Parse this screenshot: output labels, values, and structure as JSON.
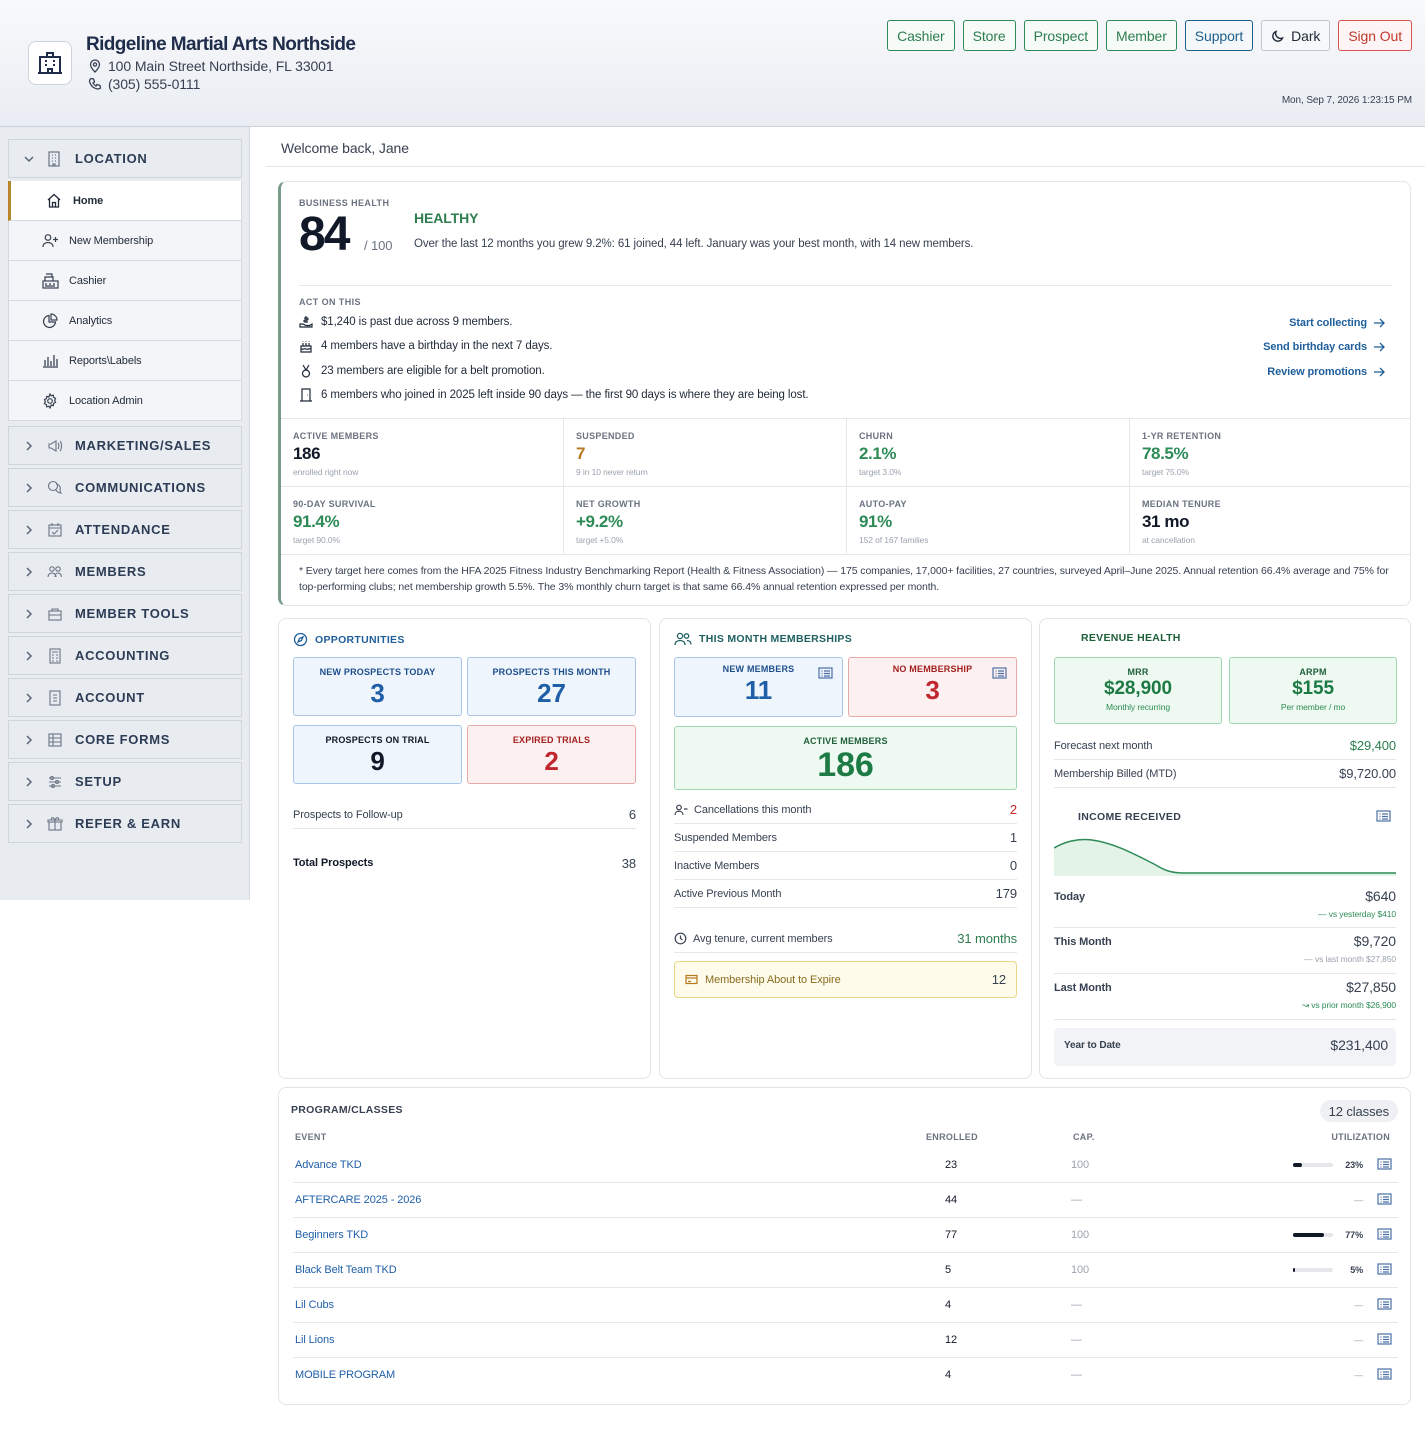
{
  "header": {
    "name": "Ridgeline Martial Arts Northside",
    "address": "100 Main Street  Northside, FL 33001",
    "phone": "(305) 555-0111",
    "datetime": "Mon, Sep 7, 2026 1:23:15 PM",
    "buttons": {
      "cashier": "Cashier",
      "store": "Store",
      "prospect": "Prospect",
      "member": "Member",
      "support": "Support",
      "dark": "Dark",
      "signout": "Sign Out"
    }
  },
  "sidebar": {
    "location": "LOCATION",
    "sub": [
      "Home",
      "New Membership",
      "Cashier",
      "Analytics",
      "Reports\\Labels",
      "Location Admin"
    ],
    "sections": [
      "MARKETING/SALES",
      "COMMUNICATIONS",
      "ATTENDANCE",
      "MEMBERS",
      "MEMBER TOOLS",
      "ACCOUNTING",
      "ACCOUNT",
      "CORE FORMS",
      "SETUP",
      "REFER & EARN"
    ]
  },
  "welcome": "Welcome back, Jane",
  "health": {
    "label": "BUSINESS HEALTH",
    "score": "84",
    "of": "/ 100",
    "status": "HEALTHY",
    "desc": "Over the last 12 months you grew 9.2%: 61 joined, 44 left. January was your best month, with 14 new members.",
    "act_label": "ACT ON THIS",
    "acts": [
      "$1,240 is past due across 9 members.",
      "4 members have a birthday in the next 7 days.",
      "23 members are eligible for a belt promotion.",
      "6 members who joined in 2025 left inside 90 days — the first 90 days is where they are being lost."
    ],
    "links": [
      "Start collecting",
      "Send birthday cards",
      "Review promotions"
    ],
    "kpis": [
      {
        "label": "ACTIVE MEMBERS",
        "value": "186",
        "sub": "enrolled right now",
        "color": "#111827"
      },
      {
        "label": "SUSPENDED",
        "value": "7",
        "sub": "9 in 10 never return",
        "color": "#b7791f"
      },
      {
        "label": "CHURN",
        "value": "2.1%",
        "sub": "target 3.0%",
        "color": "#2e8b57"
      },
      {
        "label": "1-YR RETENTION",
        "value": "78.5%",
        "sub": "target 75.0%",
        "color": "#2e8b57"
      },
      {
        "label": "90-DAY SURVIVAL",
        "value": "91.4%",
        "sub": "target 90.0%",
        "color": "#2e8b57"
      },
      {
        "label": "NET GROWTH",
        "value": "+9.2%",
        "sub": "target +5.0%",
        "color": "#2e8b57"
      },
      {
        "label": "AUTO-PAY",
        "value": "91%",
        "sub": "152 of 167 families",
        "color": "#2e8b57"
      },
      {
        "label": "MEDIAN TENURE",
        "value": "31 mo",
        "sub": "at cancellation",
        "color": "#111827"
      }
    ],
    "footnote": "* Every target here comes from the HFA 2025 Fitness Industry Benchmarking Report (Health & Fitness Association) — 175 companies, 17,000+ facilities, 27 countries, surveyed April–June 2025. Annual retention 66.4% average and 75% for top-performing clubs; net membership growth 5.5%. The 3% monthly churn target is that same 66.4% annual retention expressed per month."
  },
  "opps": {
    "title": "OPPORTUNITIES",
    "tiles": [
      {
        "label": "NEW PROSPECTS TODAY",
        "value": "3"
      },
      {
        "label": "PROSPECTS THIS MONTH",
        "value": "27"
      },
      {
        "label": "PROSPECTS ON TRIAL",
        "value": "9"
      },
      {
        "label": "EXPIRED TRIALS",
        "value": "2"
      }
    ],
    "followup_label": "Prospects to Follow-up",
    "followup_value": "6",
    "total_label": "Total Prospects",
    "total_value": "38"
  },
  "memberships": {
    "title": "THIS MONTH MEMBERSHIPS",
    "new_label": "NEW MEMBERS",
    "new_value": "11",
    "none_label": "NO MEMBERSHIP",
    "none_value": "3",
    "active_label": "ACTIVE MEMBERS",
    "active_value": "186",
    "rows": [
      {
        "label": "Cancellations this month",
        "value": "2"
      },
      {
        "label": "Suspended Members",
        "value": "1"
      },
      {
        "label": "Inactive Members",
        "value": "0"
      },
      {
        "label": "Active Previous Month",
        "value": "179"
      }
    ],
    "tenure_label": "Avg tenure, current members",
    "tenure_value": "31 months",
    "expire_label": "Membership About to Expire",
    "expire_value": "12"
  },
  "revenue": {
    "title": "REVENUE HEALTH",
    "mrr_label": "MRR",
    "mrr_value": "$28,900",
    "mrr_sub": "Monthly recurring",
    "arpm_label": "ARPM",
    "arpm_value": "$155",
    "arpm_sub": "Per member / mo",
    "forecast_label": "Forecast next month",
    "forecast_value": "$29,400",
    "billed_label": "Membership Billed (MTD)",
    "billed_value": "$9,720.00",
    "income_label": "INCOME RECEIVED",
    "today_label": "Today",
    "today_value": "$640",
    "today_sub": "vs yesterday $410",
    "month_label": "This Month",
    "month_value": "$9,720",
    "month_sub": "vs last month $27,850",
    "last_label": "Last Month",
    "last_value": "$27,850",
    "last_sub": "vs prior month $26,900",
    "ytd_label": "Year to Date",
    "ytd_value": "$231,400"
  },
  "programs": {
    "title": "PROGRAM/CLASSES",
    "badge": "12 classes",
    "headers": {
      "event": "EVENT",
      "enrolled": "ENROLLED",
      "cap": "CAP.",
      "util": "UTILIZATION"
    },
    "rows": [
      {
        "name": "Advance TKD",
        "enrolled": "23",
        "cap": "100",
        "util": "23%",
        "pct": 0.23
      },
      {
        "name": "AFTERCARE 2025 - 2026",
        "enrolled": "44",
        "cap": "—",
        "util": "—",
        "pct": null
      },
      {
        "name": "Beginners TKD",
        "enrolled": "77",
        "cap": "100",
        "util": "77%",
        "pct": 0.77
      },
      {
        "name": "Black Belt Team TKD",
        "enrolled": "5",
        "cap": "100",
        "util": "5%",
        "pct": 0.05
      },
      {
        "name": "Lil Cubs",
        "enrolled": "4",
        "cap": "—",
        "util": "—",
        "pct": null
      },
      {
        "name": "Lil Lions",
        "enrolled": "12",
        "cap": "—",
        "util": "—",
        "pct": null
      },
      {
        "name": "MOBILE PROGRAM",
        "enrolled": "4",
        "cap": "—",
        "util": "—",
        "pct": null
      }
    ]
  }
}
